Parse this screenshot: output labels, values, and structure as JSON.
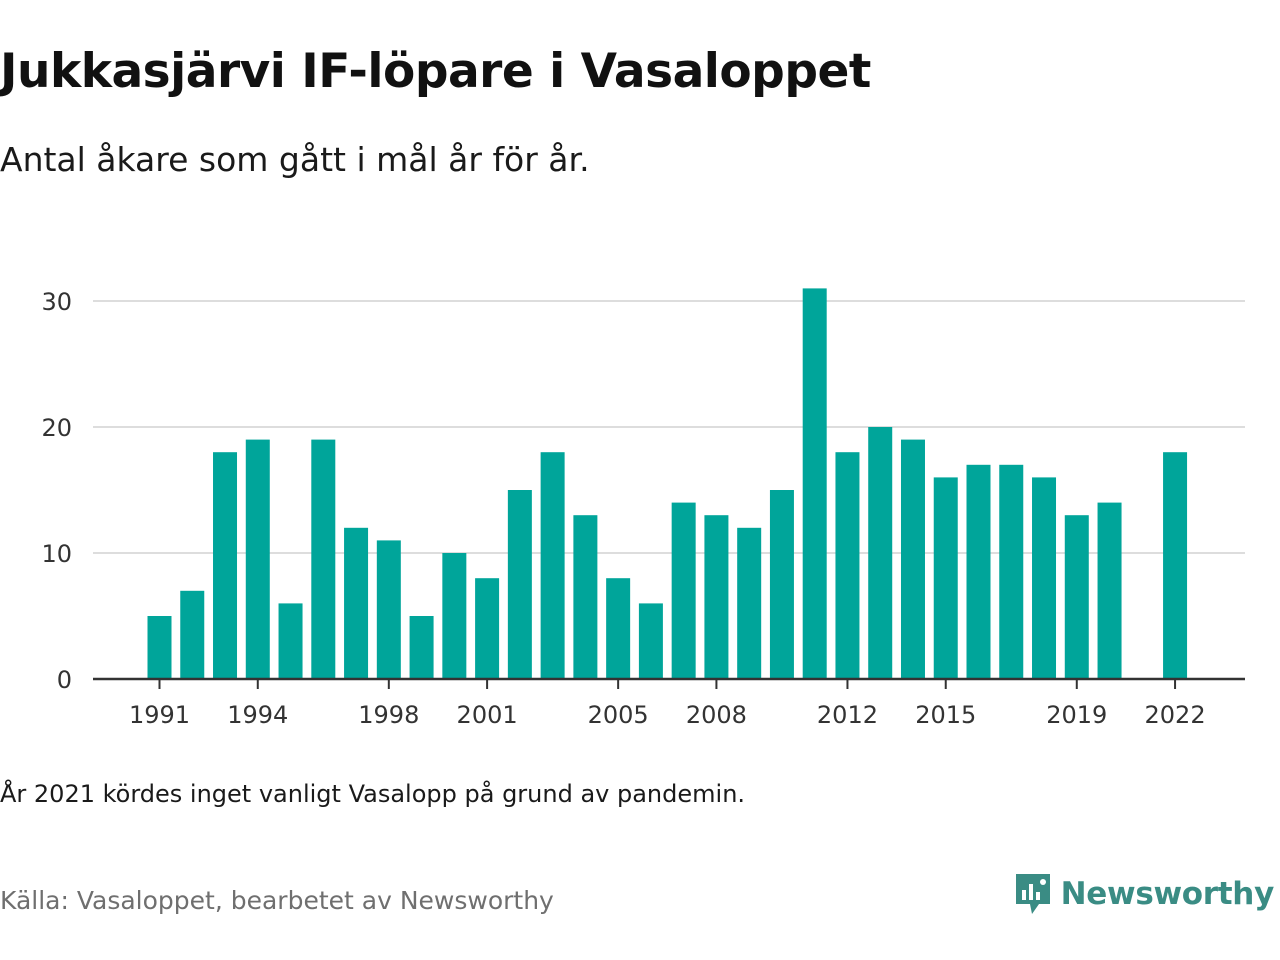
{
  "title": "Jukkasjärvi IF-löpare i Vasaloppet",
  "subtitle": "Antal åkare som gått i mål år för år.",
  "note": "År 2021 kördes inget vanligt Vasalopp på grund av pandemin.",
  "source": "Källa: Vasaloppet, bearbetet av Newsworthy",
  "brand": {
    "name": "Newsworthy",
    "icon": "newsworthy-logo-icon"
  },
  "colors": {
    "bar": "#00a59a",
    "grid": "#dddddd",
    "axis": "#333333",
    "brand": "#3a8c84"
  },
  "chart_data": {
    "type": "bar",
    "x": [
      1991,
      1992,
      1993,
      1994,
      1995,
      1996,
      1997,
      1998,
      1999,
      2000,
      2001,
      2002,
      2003,
      2004,
      2005,
      2006,
      2007,
      2008,
      2009,
      2010,
      2011,
      2012,
      2013,
      2014,
      2015,
      2016,
      2017,
      2018,
      2019,
      2020,
      2022
    ],
    "values": [
      5,
      7,
      18,
      19,
      6,
      19,
      12,
      11,
      5,
      10,
      8,
      15,
      18,
      13,
      8,
      6,
      14,
      13,
      12,
      15,
      31,
      18,
      20,
      19,
      16,
      17,
      17,
      16,
      13,
      14,
      18
    ],
    "x_ticks": [
      1991,
      1994,
      1998,
      2001,
      2005,
      2008,
      2012,
      2015,
      2019,
      2022
    ],
    "y_ticks": [
      0,
      10,
      20,
      30
    ],
    "ylim": [
      0,
      30
    ],
    "xlabel": "",
    "ylabel": "",
    "grid": "horizontal",
    "legend": "none"
  }
}
